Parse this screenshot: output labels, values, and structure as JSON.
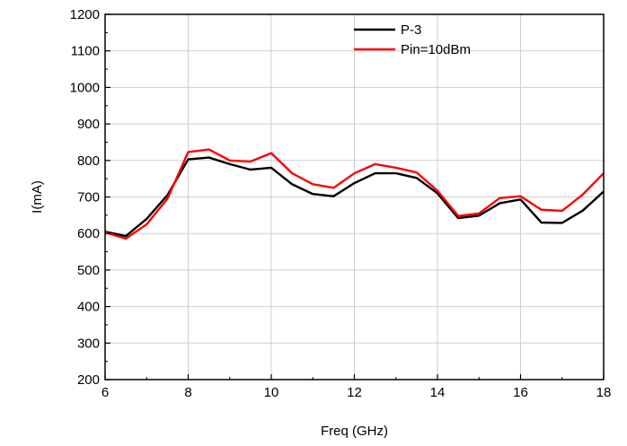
{
  "chart_data": {
    "type": "line",
    "xlabel": "Freq (GHz)",
    "ylabel": "I(mA)",
    "xlim": [
      6,
      18
    ],
    "ylim": [
      200,
      1200
    ],
    "x_ticks": [
      6,
      8,
      10,
      12,
      14,
      16,
      18
    ],
    "y_ticks": [
      200,
      300,
      400,
      500,
      600,
      700,
      800,
      900,
      1000,
      1100,
      1200
    ],
    "grid": true,
    "legend_position": "top-right",
    "x": [
      6,
      6.5,
      7,
      7.5,
      8,
      8.5,
      9,
      9.5,
      10,
      10.5,
      11,
      11.5,
      12,
      12.5,
      13,
      13.5,
      14,
      14.5,
      15,
      15.5,
      16,
      16.5,
      17,
      17.5,
      18
    ],
    "series": [
      {
        "name": "P-3",
        "color": "#000000",
        "values": [
          605,
          593,
          640,
          705,
          803,
          808,
          790,
          775,
          780,
          735,
          708,
          702,
          738,
          765,
          765,
          752,
          710,
          642,
          649,
          683,
          693,
          630,
          629,
          663,
          715
        ]
      },
      {
        "name": "Pin=10dBm",
        "color": "#ff0000",
        "values": [
          603,
          586,
          625,
          695,
          823,
          830,
          800,
          797,
          820,
          765,
          735,
          725,
          765,
          790,
          780,
          767,
          717,
          648,
          655,
          697,
          702,
          665,
          662,
          707,
          765
        ]
      }
    ]
  }
}
